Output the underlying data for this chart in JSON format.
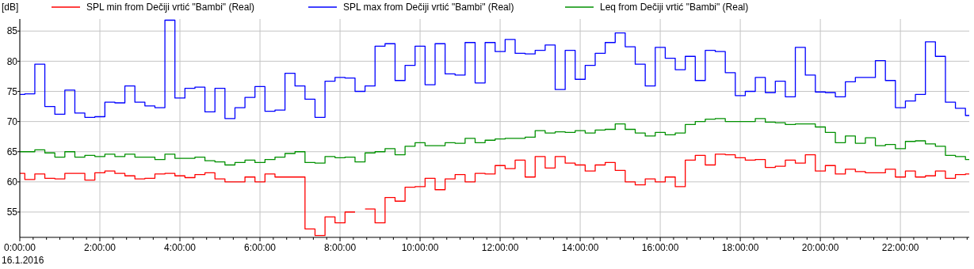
{
  "chart_data": {
    "type": "step",
    "ylabel": "[dB]",
    "annotations": [
      "16.1.2016"
    ],
    "legend": "top left",
    "grid": true,
    "xlim": [
      0,
      23.72
    ],
    "ylim": [
      50.8,
      87
    ],
    "yticks": [
      55,
      60,
      65,
      70,
      75,
      80,
      85
    ],
    "xticks": [
      {
        "value": 0,
        "label": "0:00:00"
      },
      {
        "value": 0.333,
        "label": null
      },
      {
        "value": 0.667,
        "label": null
      },
      {
        "value": 1,
        "label": null
      },
      {
        "value": 1.333,
        "label": null
      },
      {
        "value": 1.667,
        "label": null
      },
      {
        "value": 2,
        "label": "2:00:00"
      },
      {
        "value": 2.333,
        "label": null
      },
      {
        "value": 2.667,
        "label": null
      },
      {
        "value": 3,
        "label": null
      },
      {
        "value": 3.333,
        "label": null
      },
      {
        "value": 3.667,
        "label": null
      },
      {
        "value": 4,
        "label": "4:00:00"
      },
      {
        "value": 4.333,
        "label": null
      },
      {
        "value": 4.667,
        "label": null
      },
      {
        "value": 5,
        "label": null
      },
      {
        "value": 5.333,
        "label": null
      },
      {
        "value": 5.667,
        "label": null
      },
      {
        "value": 6,
        "label": "6:00:00"
      },
      {
        "value": 6.333,
        "label": null
      },
      {
        "value": 6.667,
        "label": null
      },
      {
        "value": 7,
        "label": null
      },
      {
        "value": 7.333,
        "label": null
      },
      {
        "value": 7.667,
        "label": null
      },
      {
        "value": 8,
        "label": "8:00:00"
      },
      {
        "value": 8.333,
        "label": null
      },
      {
        "value": 8.667,
        "label": null
      },
      {
        "value": 9,
        "label": null
      },
      {
        "value": 9.333,
        "label": null
      },
      {
        "value": 9.667,
        "label": null
      },
      {
        "value": 10,
        "label": "10:00:00"
      },
      {
        "value": 10.333,
        "label": null
      },
      {
        "value": 10.667,
        "label": null
      },
      {
        "value": 11,
        "label": null
      },
      {
        "value": 11.333,
        "label": null
      },
      {
        "value": 11.667,
        "label": null
      },
      {
        "value": 12,
        "label": "12:00:00"
      },
      {
        "value": 12.333,
        "label": null
      },
      {
        "value": 12.667,
        "label": null
      },
      {
        "value": 13,
        "label": null
      },
      {
        "value": 13.333,
        "label": null
      },
      {
        "value": 13.667,
        "label": null
      },
      {
        "value": 14,
        "label": "14:00:00"
      },
      {
        "value": 14.333,
        "label": null
      },
      {
        "value": 14.667,
        "label": null
      },
      {
        "value": 15,
        "label": null
      },
      {
        "value": 15.333,
        "label": null
      },
      {
        "value": 15.667,
        "label": null
      },
      {
        "value": 16,
        "label": "16:00:00"
      },
      {
        "value": 16.333,
        "label": null
      },
      {
        "value": 16.667,
        "label": null
      },
      {
        "value": 17,
        "label": null
      },
      {
        "value": 17.333,
        "label": null
      },
      {
        "value": 17.667,
        "label": null
      },
      {
        "value": 18,
        "label": "18:00:00"
      },
      {
        "value": 18.333,
        "label": null
      },
      {
        "value": 18.667,
        "label": null
      },
      {
        "value": 19,
        "label": null
      },
      {
        "value": 19.333,
        "label": null
      },
      {
        "value": 19.667,
        "label": null
      },
      {
        "value": 20,
        "label": "20:00:00"
      },
      {
        "value": 20.333,
        "label": null
      },
      {
        "value": 20.667,
        "label": null
      },
      {
        "value": 21,
        "label": null
      },
      {
        "value": 21.333,
        "label": null
      },
      {
        "value": 21.667,
        "label": null
      },
      {
        "value": 22,
        "label": "22:00:00"
      },
      {
        "value": 22.333,
        "label": null
      },
      {
        "value": 22.667,
        "label": null
      },
      {
        "value": 23,
        "label": null
      },
      {
        "value": 23.333,
        "label": null
      },
      {
        "value": 23.667,
        "label": null
      }
    ],
    "x": [
      0,
      0.125,
      0.375,
      0.625,
      0.875,
      1.125,
      1.375,
      1.625,
      1.875,
      2.125,
      2.375,
      2.625,
      2.875,
      3.125,
      3.375,
      3.625,
      3.875,
      4.125,
      4.375,
      4.625,
      4.875,
      5.125,
      5.375,
      5.625,
      5.875,
      6.125,
      6.375,
      6.625,
      6.875,
      7.125,
      7.375,
      7.625,
      7.875,
      8.125,
      8.375,
      8.625,
      8.875,
      9.125,
      9.375,
      9.625,
      9.875,
      10.125,
      10.375,
      10.625,
      10.875,
      11.125,
      11.375,
      11.625,
      11.875,
      12.125,
      12.375,
      12.625,
      12.875,
      13.125,
      13.375,
      13.625,
      13.875,
      14.125,
      14.375,
      14.625,
      14.875,
      15.125,
      15.375,
      15.625,
      15.875,
      16.125,
      16.375,
      16.625,
      16.875,
      17.125,
      17.375,
      17.625,
      17.875,
      18.125,
      18.375,
      18.625,
      18.875,
      19.125,
      19.375,
      19.625,
      19.875,
      20.125,
      20.375,
      20.625,
      20.875,
      21.125,
      21.375,
      21.625,
      21.875,
      22.125,
      22.375,
      22.625,
      22.875,
      23.125,
      23.375,
      23.625
    ],
    "series": [
      {
        "name": "SPL min from Dečiji vrtić \"Bambi\" (Real)",
        "color": "#ff0000",
        "values": [
          61.4,
          60.4,
          61.3,
          60.6,
          60.5,
          61.4,
          61.4,
          60.3,
          61.5,
          61.8,
          61.4,
          61.0,
          60.5,
          60.6,
          61.3,
          61.4,
          61.0,
          60.7,
          61.2,
          61.5,
          60.5,
          60.0,
          60.0,
          60.8,
          60.0,
          61.3,
          60.8,
          60.8,
          60.8,
          52.2,
          51.1,
          54.2,
          53.2,
          55.0,
          null,
          55.5,
          53.2,
          57.4,
          56.8,
          59.1,
          59.2,
          60.6,
          58.7,
          60.5,
          61.2,
          60.0,
          61.4,
          61.3,
          62.7,
          62.2,
          63.6,
          60.8,
          64.2,
          62.3,
          64.2,
          63.1,
          62.8,
          61.8,
          62.8,
          63.2,
          61.9,
          60.0,
          59.5,
          60.5,
          60.0,
          60.8,
          59.2,
          63.6,
          64.4,
          62.8,
          64.6,
          64.5,
          64.0,
          63.6,
          63.7,
          62.4,
          62.6,
          63.6,
          63.1,
          64.5,
          61.8,
          62.7,
          61.3,
          62.1,
          61.7,
          61.5,
          61.5,
          62.1,
          60.8,
          61.8,
          60.8,
          61.0,
          61.8,
          60.6,
          61.2,
          61.3
        ]
      },
      {
        "name": "SPL max from Dečiji vrtić \"Bambi\" (Real)",
        "color": "#0000ff",
        "values": [
          74.5,
          74.6,
          79.5,
          72.5,
          71.2,
          75.2,
          71.4,
          70.7,
          70.8,
          73.2,
          73.1,
          75.9,
          73.2,
          72.6,
          72.3,
          86.8,
          73.9,
          75.5,
          75.7,
          71.6,
          75.5,
          70.5,
          72.3,
          74.0,
          75.8,
          71.7,
          71.9,
          78.0,
          75.9,
          73.7,
          70.7,
          76.7,
          77.3,
          77.2,
          75.0,
          75.9,
          82.5,
          82.9,
          76.8,
          79.3,
          82.5,
          76.1,
          82.9,
          77.9,
          77.7,
          83.1,
          76.4,
          83.1,
          81.6,
          83.6,
          81.3,
          81.2,
          81.8,
          82.7,
          75.3,
          81.8,
          77.0,
          79.3,
          81.3,
          83.1,
          84.7,
          82.4,
          79.5,
          75.9,
          82.3,
          80.5,
          78.6,
          80.8,
          76.8,
          81.8,
          81.6,
          78.1,
          74.3,
          75.0,
          77.3,
          74.8,
          76.7,
          74.1,
          82.3,
          77.7,
          74.9,
          74.8,
          74.1,
          76.6,
          77.3,
          77.3,
          80.1,
          76.8,
          72.3,
          73.4,
          74.5,
          83.2,
          80.8,
          73.2,
          72.2,
          71.0
        ]
      },
      {
        "name": "Leq from Dečiji vrtić \"Bambi\" (Real)",
        "color": "#009000",
        "values": [
          65.0,
          65.0,
          65.3,
          64.8,
          64.1,
          65.0,
          64.1,
          64.4,
          64.2,
          64.6,
          64.2,
          64.6,
          64.1,
          64.1,
          63.7,
          64.6,
          63.9,
          63.9,
          64.1,
          63.5,
          63.3,
          62.8,
          63.2,
          63.6,
          63.2,
          63.7,
          64.1,
          64.7,
          65.0,
          63.2,
          63.1,
          64.2,
          64.0,
          64.1,
          63.3,
          64.8,
          65.0,
          65.5,
          64.5,
          65.9,
          66.5,
          66.0,
          66.0,
          66.5,
          66.4,
          67.2,
          66.5,
          66.9,
          67.1,
          67.2,
          67.2,
          67.4,
          68.5,
          68.1,
          68.3,
          68.2,
          68.5,
          68.1,
          68.6,
          68.7,
          69.6,
          68.7,
          68.1,
          67.6,
          68.2,
          67.8,
          68.1,
          69.5,
          70.0,
          70.4,
          70.5,
          70.0,
          70.0,
          70.0,
          70.5,
          69.9,
          69.8,
          69.5,
          69.6,
          69.6,
          69.1,
          68.2,
          66.5,
          67.6,
          66.4,
          67.3,
          66.0,
          66.2,
          65.5,
          66.7,
          66.8,
          66.3,
          65.9,
          64.4,
          64.2,
          63.7
        ]
      }
    ]
  }
}
